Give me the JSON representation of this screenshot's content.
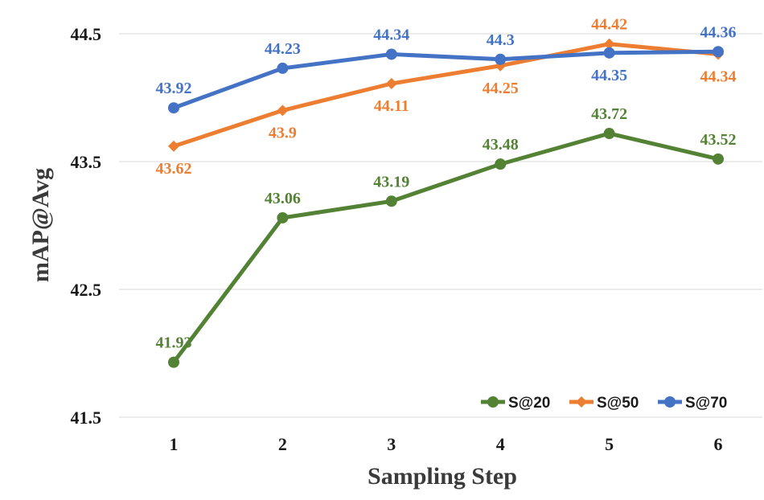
{
  "chart_data": {
    "type": "line",
    "title": "",
    "xlabel": "Sampling Step",
    "ylabel": "mAP@Avg",
    "categories": [
      "1",
      "2",
      "3",
      "4",
      "5",
      "6"
    ],
    "y_ticks": [
      "41.5",
      "42.5",
      "43.5",
      "44.5"
    ],
    "ylim": [
      41.5,
      44.6
    ],
    "grid": true,
    "legend_position": "bottom-right",
    "series": [
      {
        "name": "S@20",
        "color": "#548235",
        "marker": "circle",
        "values": [
          41.93,
          43.06,
          43.19,
          43.48,
          43.72,
          43.52
        ],
        "labels": [
          "41.93",
          "43.06",
          "43.19",
          "43.48",
          "43.72",
          "43.52"
        ],
        "label_side": [
          "above",
          "above",
          "above",
          "above",
          "above",
          "above"
        ]
      },
      {
        "name": "S@50",
        "color": "#ED7D31",
        "marker": "diamond",
        "values": [
          43.62,
          43.9,
          44.11,
          44.25,
          44.42,
          44.34
        ],
        "labels": [
          "43.62",
          "43.9",
          "44.11",
          "44.25",
          "44.42",
          "44.34"
        ],
        "label_side": [
          "below",
          "below",
          "below",
          "below",
          "above",
          "below"
        ]
      },
      {
        "name": "S@70",
        "color": "#4472C4",
        "marker": "circle",
        "values": [
          43.92,
          44.23,
          44.34,
          44.3,
          44.35,
          44.36
        ],
        "labels": [
          "43.92",
          "44.23",
          "44.34",
          "44.3",
          "44.35",
          "44.36"
        ],
        "label_side": [
          "above",
          "above",
          "above",
          "above",
          "below",
          "above"
        ]
      }
    ]
  }
}
